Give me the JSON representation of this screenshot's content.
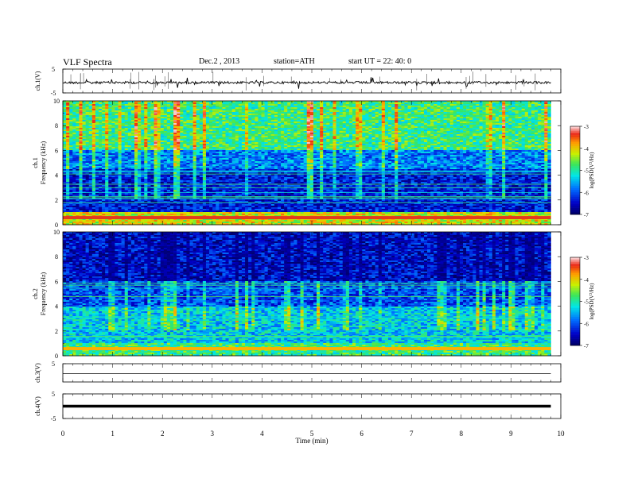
{
  "header": {
    "title": "VLF  Spectra",
    "date": "Dec.2  , 2013",
    "station": "station=ATH",
    "start": "start  UT  =    22: 40: 0"
  },
  "chart_data": [
    {
      "type": "line",
      "ylabel": "ch.1(V)",
      "yticks": [
        "5",
        "-5"
      ],
      "ylim": [
        -5,
        5
      ],
      "description_level": -0.2
    },
    {
      "type": "heatmap",
      "ylabel": "ch.1\nFrequency  (kHz)",
      "ylabel_lines": [
        "ch.1",
        "Frequency  (kHz)"
      ],
      "ylim": [
        0,
        10
      ],
      "yticks": [
        "0",
        "2",
        "4",
        "6",
        "8",
        "10"
      ],
      "colorbar": {
        "label": "log(PSD(V²/Hz)",
        "ticks": [
          "-3",
          "-4",
          "-5",
          "-6",
          "-7"
        ],
        "range": [
          -7,
          -3
        ]
      }
    },
    {
      "type": "heatmap",
      "ylabel": "ch.2\nFrequency  (kHz)",
      "ylabel_lines": [
        "ch.2",
        "Frequency  (kHz)"
      ],
      "ylim": [
        0,
        10
      ],
      "yticks": [
        "0",
        "2",
        "4",
        "6",
        "8",
        "10"
      ],
      "colorbar": {
        "label": "log(PSD(V²/Hz)",
        "ticks": [
          "-3",
          "-4",
          "-5",
          "-6",
          "-7"
        ],
        "range": [
          -7,
          -3
        ]
      }
    },
    {
      "type": "line",
      "ylabel": "ch.3(V)",
      "yticks": [
        "5"
      ],
      "ylim": [
        -5,
        5
      ]
    },
    {
      "type": "line",
      "ylabel": "ch.4(V)",
      "yticks": [
        "5",
        "-5"
      ],
      "ylim": [
        -5,
        5
      ]
    }
  ],
  "xaxis": {
    "label": "Time  (min)",
    "ticks": [
      "0",
      "1",
      "2",
      "3",
      "4",
      "5",
      "6",
      "7",
      "8",
      "9",
      "10"
    ],
    "xlim": [
      0,
      10
    ],
    "data_end": 9.8
  }
}
